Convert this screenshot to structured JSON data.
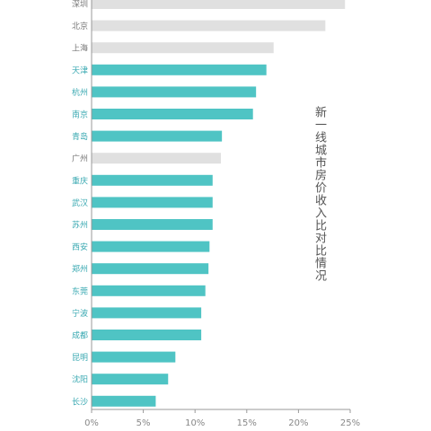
{
  "chart_data": {
    "type": "bar",
    "orientation": "horizontal",
    "title": "新一线城市房价收入比对比情况",
    "categories": [
      "深圳",
      "北京",
      "上海",
      "天津",
      "杭州",
      "南京",
      "青岛",
      "广州",
      "重庆",
      "武汉",
      "苏州",
      "西安",
      "郑州",
      "东莞",
      "宁波",
      "成都",
      "昆明",
      "沈阳",
      "长沙"
    ],
    "values": [
      24.5,
      22.6,
      17.6,
      16.9,
      15.9,
      15.6,
      12.6,
      12.5,
      11.7,
      11.7,
      11.7,
      11.4,
      11.3,
      11.0,
      10.6,
      10.6,
      8.1,
      7.4,
      6.2
    ],
    "tier": [
      "first",
      "first",
      "first",
      "new",
      "new",
      "new",
      "new",
      "first",
      "new",
      "new",
      "new",
      "new",
      "new",
      "new",
      "new",
      "new",
      "new",
      "new",
      "new"
    ],
    "x_ticks": [
      "0%",
      "5%",
      "10%",
      "15%",
      "20%",
      "25%"
    ],
    "xlim": [
      0,
      25
    ],
    "grid": false,
    "colors": {
      "first": "#e0e0e0",
      "new": "#4fc4c4",
      "label_first": "#777777",
      "label_new": "#3aa9b2",
      "axis": "#999999"
    }
  }
}
